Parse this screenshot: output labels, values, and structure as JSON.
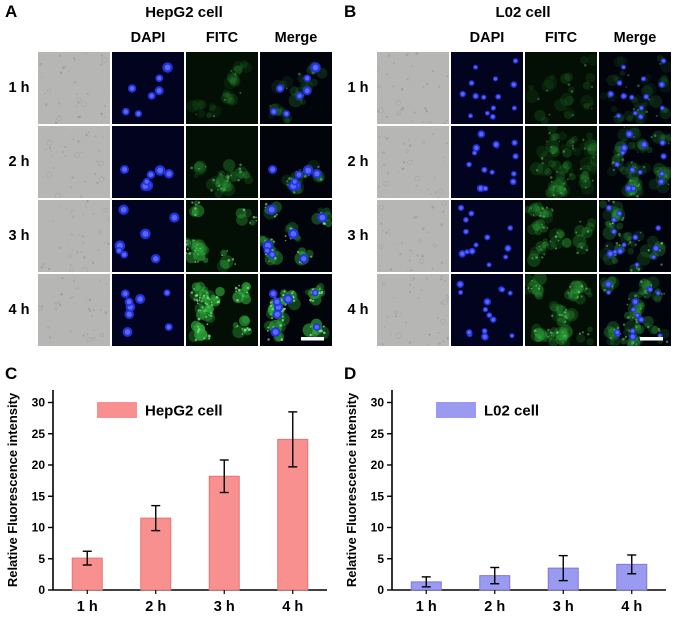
{
  "figure": {
    "panels": {
      "A": {
        "label": "A",
        "title": "HepG2 cell",
        "column_headers": [
          "DAPI",
          "FITC",
          "Merge"
        ],
        "rows": [
          {
            "label": "1 h",
            "fitc_intensity": 0.18
          },
          {
            "label": "2 h",
            "fitc_intensity": 0.35
          },
          {
            "label": "3 h",
            "fitc_intensity": 0.65
          },
          {
            "label": "4 h",
            "fitc_intensity": 0.95
          }
        ],
        "scale_bar": true
      },
      "B": {
        "label": "B",
        "title": "L02 cell",
        "column_headers": [
          "DAPI",
          "FITC",
          "Merge"
        ],
        "rows": [
          {
            "label": "1 h",
            "fitc_intensity": 0.12
          },
          {
            "label": "2 h",
            "fitc_intensity": 0.2
          },
          {
            "label": "3 h",
            "fitc_intensity": 0.32
          },
          {
            "label": "4 h",
            "fitc_intensity": 0.38
          }
        ],
        "scale_bar": true
      },
      "C": {
        "label": "C"
      },
      "D": {
        "label": "D"
      }
    }
  },
  "chart_data": [
    {
      "type": "bar",
      "panel": "C",
      "legend": "HepG2 cell",
      "bar_color": "#f99090",
      "bar_edge": "#e57474",
      "categories": [
        "1 h",
        "2 h",
        "3 h",
        "4 h"
      ],
      "values": [
        5.1,
        11.5,
        18.2,
        24.1
      ],
      "errors": [
        1.1,
        2.0,
        2.6,
        4.4
      ],
      "ylabel": "Relative Fluorescence intensity",
      "ylim": [
        0,
        32
      ],
      "yticks": [
        0,
        5,
        10,
        15,
        20,
        25,
        30
      ],
      "legend_position": "top-left-inside",
      "grid": false
    },
    {
      "type": "bar",
      "panel": "D",
      "legend": "L02 cell",
      "bar_color": "#9a9af0",
      "bar_edge": "#7b79d9",
      "categories": [
        "1 h",
        "2 h",
        "3 h",
        "4 h"
      ],
      "values": [
        1.3,
        2.3,
        3.5,
        4.1
      ],
      "errors": [
        0.8,
        1.3,
        2.0,
        1.5
      ],
      "ylabel": "Relative Fluorescence intensity",
      "ylim": [
        0,
        32
      ],
      "yticks": [
        0,
        5,
        10,
        15,
        20,
        25,
        30
      ],
      "legend_position": "top-left-inside",
      "grid": false
    }
  ]
}
